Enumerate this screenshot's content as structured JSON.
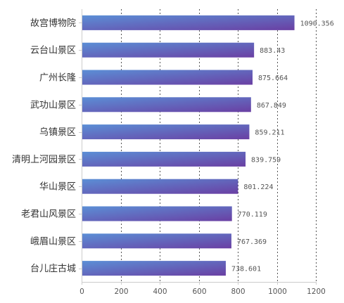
{
  "chart_data": {
    "type": "bar",
    "orientation": "horizontal",
    "title": "",
    "xlabel": "",
    "ylabel": "",
    "categories": [
      "故宫博物院",
      "云台山景区",
      "广州长隆",
      "武功山景区",
      "乌镇景区",
      "清明上河园景区",
      "华山景区",
      "老君山风景区",
      "峨眉山景区",
      "台儿庄古城"
    ],
    "values": [
      1090.356,
      883.43,
      875.664,
      867.849,
      859.211,
      839.759,
      801.224,
      770.119,
      767.369,
      738.601
    ],
    "value_labels": [
      "1090.356",
      "883.43",
      "875.664",
      "867.849",
      "859.211",
      "839.759",
      "801.224",
      "770.119",
      "767.369",
      "738.601"
    ],
    "xlim": [
      0,
      1200
    ],
    "xticks": [
      0,
      200,
      400,
      600,
      800,
      1000,
      1200
    ],
    "grid": true,
    "legend": "none",
    "colors": {
      "bar_start": "#5b8fd6",
      "bar_end": "#6a3fa3",
      "grid": "#555555",
      "axis": "#cccccc",
      "text": "#333333"
    }
  }
}
